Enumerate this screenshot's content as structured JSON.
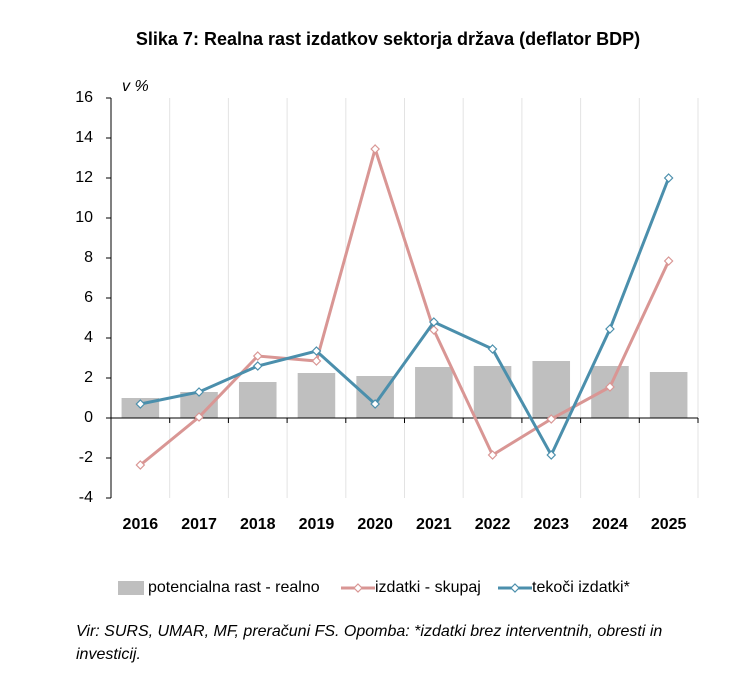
{
  "chart_data": {
    "type": "bar",
    "title": "Slika 7: Realna rast izdatkov sektorja država (deflator BDP)",
    "y_label": "v %",
    "categories": [
      "2016",
      "2017",
      "2018",
      "2019",
      "2020",
      "2021",
      "2022",
      "2023",
      "2024",
      "2025"
    ],
    "series": [
      {
        "name": "potencialna rast - realno",
        "type": "bar",
        "color": "#bfbfbf",
        "values": [
          1.0,
          1.3,
          1.8,
          2.25,
          2.1,
          2.55,
          2.6,
          2.85,
          2.6,
          2.3
        ]
      },
      {
        "name": "izdatki - skupaj",
        "type": "line",
        "color": "#d99694",
        "values": [
          -2.35,
          0.05,
          3.1,
          2.85,
          13.45,
          4.4,
          -1.85,
          -0.05,
          1.55,
          7.85
        ]
      },
      {
        "name": "tekoči izdatki*",
        "type": "line",
        "color": "#4b8fac",
        "values": [
          0.7,
          1.3,
          2.6,
          3.35,
          0.7,
          4.8,
          3.45,
          -1.85,
          4.45,
          12.0
        ]
      }
    ],
    "ylim": [
      -4,
      16
    ],
    "yticks": [
      -4,
      -2,
      0,
      2,
      4,
      6,
      8,
      10,
      12,
      14,
      16
    ],
    "category_grid": true,
    "legend": "bottom",
    "note": "Vir: SURS, UMAR, MF, preračuni FS. Opomba: *izdatki brez interventnih, obresti in investicij."
  }
}
